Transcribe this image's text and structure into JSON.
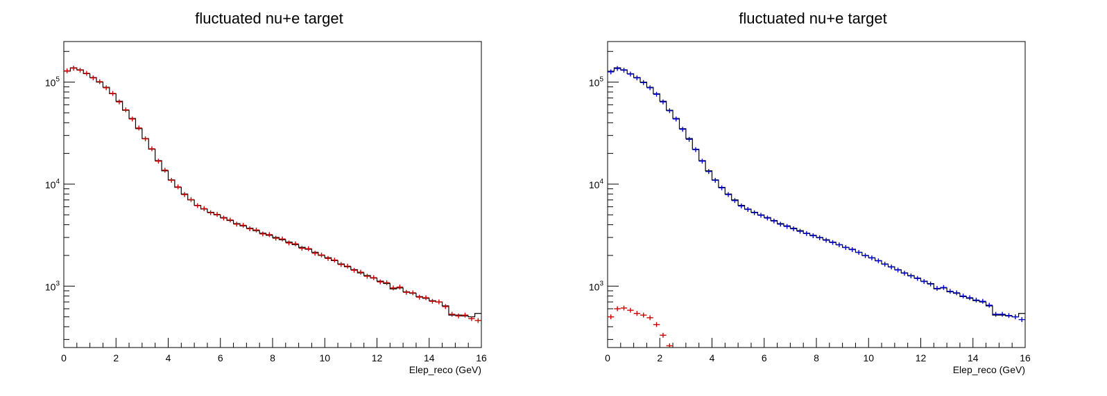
{
  "chart_data": [
    {
      "type": "histogram",
      "title": "fluctuated nu+e target",
      "xlabel": "Elep_reco (GeV)",
      "ylabel": "",
      "xlim": [
        0,
        16
      ],
      "ylim": [
        250,
        250000
      ],
      "yscale": "log",
      "x_ticks": [
        "0",
        "2",
        "4",
        "6",
        "8",
        "10",
        "12",
        "14",
        "16"
      ],
      "y_ticks": [
        {
          "base": "10",
          "exp": "5",
          "value": 100000
        },
        {
          "base": "10",
          "exp": "4",
          "value": 10000
        },
        {
          "base": "10",
          "exp": "3",
          "value": 1000
        }
      ],
      "grid": false,
      "series": [
        {
          "style": "step",
          "color": "#000000",
          "x": [
            0.125,
            0.375,
            0.625,
            0.875,
            1.125,
            1.375,
            1.625,
            1.875,
            2.125,
            2.375,
            2.625,
            2.875,
            3.125,
            3.375,
            3.625,
            3.875,
            4.125,
            4.375,
            4.625,
            4.875,
            5.125,
            5.375,
            5.625,
            5.875,
            6.125,
            6.375,
            6.625,
            6.875,
            7.125,
            7.375,
            7.625,
            7.875,
            8.125,
            8.375,
            8.625,
            8.875,
            9.125,
            9.375,
            9.625,
            9.875,
            10.125,
            10.375,
            10.625,
            10.875,
            11.125,
            11.375,
            11.625,
            11.875,
            12.125,
            12.375,
            12.625,
            12.875,
            13.125,
            13.375,
            13.625,
            13.875,
            14.125,
            14.375,
            14.625,
            14.875,
            15.125,
            15.375,
            15.625,
            15.875
          ],
          "values": [
            128000,
            138000,
            132000,
            121000,
            111000,
            100000,
            89000,
            77000,
            65000,
            53000,
            44000,
            35000,
            28000,
            22000,
            17000,
            13500,
            11000,
            9300,
            8000,
            7000,
            6200,
            5700,
            5300,
            5000,
            4700,
            4400,
            4100,
            3900,
            3700,
            3500,
            3300,
            3150,
            3000,
            2850,
            2700,
            2550,
            2400,
            2300,
            2150,
            2000,
            1900,
            1780,
            1650,
            1550,
            1450,
            1350,
            1270,
            1200,
            1120,
            1060,
            940,
            960,
            880,
            850,
            790,
            760,
            720,
            700,
            640,
            520,
            520,
            510,
            500,
            540
          ]
        },
        {
          "style": "points",
          "color": "#cc0000",
          "x": [
            0.125,
            0.375,
            0.625,
            0.875,
            1.125,
            1.375,
            1.625,
            1.875,
            2.125,
            2.375,
            2.625,
            2.875,
            3.125,
            3.375,
            3.625,
            3.875,
            4.125,
            4.375,
            4.625,
            4.875,
            5.125,
            5.375,
            5.625,
            5.875,
            6.125,
            6.375,
            6.625,
            6.875,
            7.125,
            7.375,
            7.625,
            7.875,
            8.125,
            8.375,
            8.625,
            8.875,
            9.125,
            9.375,
            9.625,
            9.875,
            10.125,
            10.375,
            10.625,
            10.875,
            11.125,
            11.375,
            11.625,
            11.875,
            12.125,
            12.375,
            12.625,
            12.875,
            13.125,
            13.375,
            13.625,
            13.875,
            14.125,
            14.375,
            14.625,
            14.875,
            15.125,
            15.375,
            15.625,
            15.875
          ],
          "values": [
            129000,
            137000,
            131000,
            122000,
            110000,
            101000,
            88000,
            77500,
            64000,
            53500,
            43500,
            35500,
            27800,
            22200,
            16800,
            13700,
            10900,
            9400,
            7900,
            7050,
            6150,
            5750,
            5250,
            5050,
            4650,
            4450,
            4050,
            3950,
            3650,
            3550,
            3250,
            3200,
            2950,
            2900,
            2650,
            2600,
            2350,
            2330,
            2100,
            2020,
            1870,
            1800,
            1630,
            1570,
            1430,
            1370,
            1250,
            1210,
            1100,
            1080,
            960,
            980,
            870,
            860,
            780,
            770,
            710,
            700,
            630,
            530,
            510,
            520,
            480,
            460
          ]
        }
      ]
    },
    {
      "type": "histogram",
      "title": "fluctuated nu+e target",
      "xlabel": "Elep_reco (GeV)",
      "ylabel": "",
      "xlim": [
        0,
        16
      ],
      "ylim": [
        250,
        250000
      ],
      "yscale": "log",
      "x_ticks": [
        "0",
        "2",
        "4",
        "6",
        "8",
        "10",
        "12",
        "14",
        "16"
      ],
      "y_ticks": [
        {
          "base": "10",
          "exp": "5",
          "value": 100000
        },
        {
          "base": "10",
          "exp": "4",
          "value": 10000
        },
        {
          "base": "10",
          "exp": "3",
          "value": 1000
        }
      ],
      "grid": false,
      "series": [
        {
          "style": "step",
          "color": "#000000",
          "x": [
            0.125,
            0.375,
            0.625,
            0.875,
            1.125,
            1.375,
            1.625,
            1.875,
            2.125,
            2.375,
            2.625,
            2.875,
            3.125,
            3.375,
            3.625,
            3.875,
            4.125,
            4.375,
            4.625,
            4.875,
            5.125,
            5.375,
            5.625,
            5.875,
            6.125,
            6.375,
            6.625,
            6.875,
            7.125,
            7.375,
            7.625,
            7.875,
            8.125,
            8.375,
            8.625,
            8.875,
            9.125,
            9.375,
            9.625,
            9.875,
            10.125,
            10.375,
            10.625,
            10.875,
            11.125,
            11.375,
            11.625,
            11.875,
            12.125,
            12.375,
            12.625,
            12.875,
            13.125,
            13.375,
            13.625,
            13.875,
            14.125,
            14.375,
            14.625,
            14.875,
            15.125,
            15.375,
            15.625,
            15.875
          ],
          "values": [
            128000,
            138000,
            132000,
            121000,
            111000,
            100000,
            89000,
            77000,
            65000,
            53000,
            44000,
            35000,
            28000,
            22000,
            17000,
            13500,
            11000,
            9300,
            8000,
            7000,
            6200,
            5700,
            5300,
            5000,
            4700,
            4400,
            4100,
            3900,
            3700,
            3500,
            3300,
            3150,
            3000,
            2850,
            2700,
            2550,
            2400,
            2300,
            2150,
            2000,
            1900,
            1780,
            1650,
            1550,
            1450,
            1350,
            1270,
            1200,
            1120,
            1060,
            940,
            960,
            880,
            850,
            790,
            760,
            720,
            700,
            640,
            520,
            520,
            510,
            500,
            540
          ]
        },
        {
          "style": "points",
          "color": "#0000cc",
          "x": [
            0.125,
            0.375,
            0.625,
            0.875,
            1.125,
            1.375,
            1.625,
            1.875,
            2.125,
            2.375,
            2.625,
            2.875,
            3.125,
            3.375,
            3.625,
            3.875,
            4.125,
            4.375,
            4.625,
            4.875,
            5.125,
            5.375,
            5.625,
            5.875,
            6.125,
            6.375,
            6.625,
            6.875,
            7.125,
            7.375,
            7.625,
            7.875,
            8.125,
            8.375,
            8.625,
            8.875,
            9.125,
            9.375,
            9.625,
            9.875,
            10.125,
            10.375,
            10.625,
            10.875,
            11.125,
            11.375,
            11.625,
            11.875,
            12.125,
            12.375,
            12.625,
            12.875,
            13.125,
            13.375,
            13.625,
            13.875,
            14.125,
            14.375,
            14.625,
            14.875,
            15.125,
            15.375,
            15.625,
            15.875
          ],
          "values": [
            126000,
            136000,
            131000,
            120000,
            110000,
            99000,
            88000,
            76000,
            64000,
            52500,
            43500,
            34500,
            27500,
            21800,
            16800,
            13300,
            10900,
            9200,
            7900,
            6900,
            6100,
            5650,
            5250,
            4950,
            4650,
            4350,
            4050,
            3850,
            3650,
            3450,
            3280,
            3120,
            2980,
            2820,
            2680,
            2540,
            2390,
            2280,
            2140,
            1990,
            1890,
            1770,
            1640,
            1540,
            1440,
            1340,
            1260,
            1190,
            1110,
            1050,
            950,
            970,
            890,
            860,
            800,
            770,
            730,
            710,
            650,
            530,
            530,
            515,
            500,
            470
          ]
        },
        {
          "style": "points",
          "color": "#cc0000",
          "x": [
            0.125,
            0.375,
            0.625,
            0.875,
            1.125,
            1.375,
            1.625,
            1.875,
            2.125,
            2.375
          ],
          "values": [
            500,
            600,
            610,
            580,
            540,
            520,
            490,
            420,
            330,
            260
          ]
        }
      ]
    }
  ]
}
